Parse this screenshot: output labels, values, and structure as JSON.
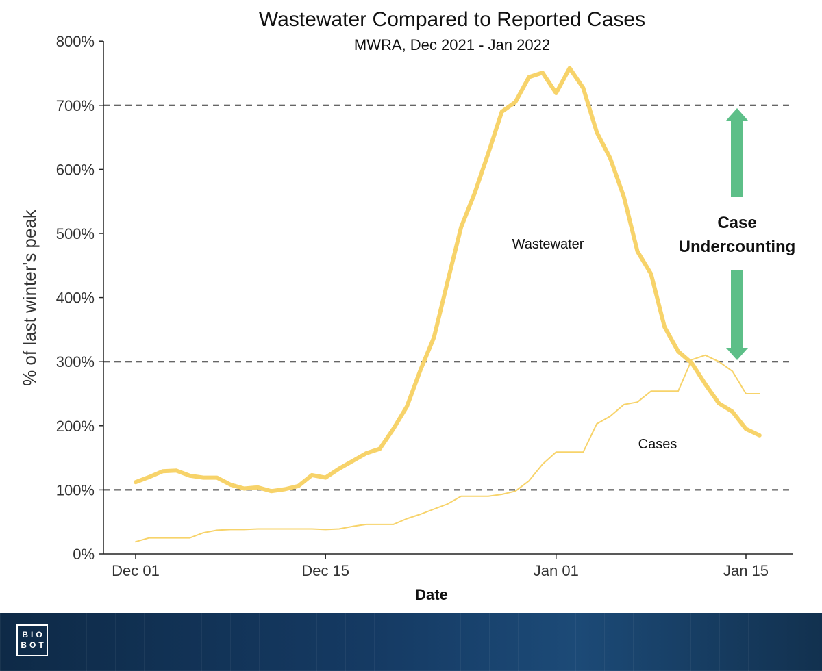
{
  "chart_data": {
    "type": "line",
    "title": "Wastewater Compared to Reported Cases",
    "subtitle": "MWRA, Dec 2021 - Jan 2022",
    "xlabel": "Date",
    "ylabel": "% of last winter's peak",
    "x_ticks": [
      {
        "label": "Dec 01",
        "day": 0
      },
      {
        "label": "Dec 15",
        "day": 14
      },
      {
        "label": "Jan 01",
        "day": 31
      },
      {
        "label": "Jan 15",
        "day": 45
      }
    ],
    "y_ticks": [
      "0%",
      "100%",
      "200%",
      "300%",
      "400%",
      "500%",
      "600%",
      "700%",
      "800%"
    ],
    "ylim": [
      0,
      800
    ],
    "reference_lines": [
      100,
      300,
      700
    ],
    "series": [
      {
        "name": "Wastewater",
        "color": "#f7d36a",
        "x": [
          0,
          1,
          2,
          3,
          4,
          5,
          6,
          7,
          8,
          9,
          10,
          11,
          12,
          13,
          14,
          15,
          16,
          17,
          18,
          19,
          20,
          21,
          22,
          23,
          24,
          25,
          26,
          27,
          28,
          29,
          30,
          31,
          32,
          33,
          34,
          35,
          36,
          37,
          38,
          39,
          40,
          41,
          42,
          43,
          44,
          45,
          46
        ],
        "values": [
          112,
          120,
          129,
          130,
          122,
          119,
          119,
          108,
          102,
          104,
          98,
          101,
          106,
          123,
          119,
          133,
          145,
          157,
          164,
          195,
          230,
          287,
          338,
          425,
          510,
          563,
          625,
          690,
          705,
          744,
          751,
          719,
          758,
          727,
          658,
          617,
          557,
          472,
          437,
          354,
          316,
          298,
          265,
          235,
          222,
          195,
          185
        ]
      },
      {
        "name": "Cases",
        "color": "#f7d36a",
        "x": [
          0,
          1,
          2,
          3,
          4,
          5,
          6,
          7,
          8,
          9,
          10,
          11,
          12,
          13,
          14,
          15,
          16,
          17,
          18,
          19,
          20,
          21,
          22,
          23,
          24,
          25,
          26,
          27,
          28,
          29,
          30,
          31,
          32,
          33,
          34,
          35,
          36,
          37,
          38,
          39,
          40,
          41,
          42,
          43,
          44,
          45,
          46
        ],
        "values": [
          19,
          25,
          25,
          25,
          25,
          33,
          37,
          38,
          38,
          39,
          39,
          39,
          39,
          39,
          38,
          39,
          43,
          46,
          46,
          46,
          55,
          62,
          70,
          78,
          90,
          90,
          90,
          93,
          98,
          114,
          140,
          159,
          159,
          159,
          203,
          215,
          233,
          237,
          254,
          254,
          254,
          303,
          310,
          300,
          285,
          250,
          250
        ]
      }
    ],
    "annotations": {
      "series_label_wastewater": "Wastewater",
      "series_label_cases": "Cases",
      "gap_line1": "Case",
      "gap_line2": "Undercounting",
      "arrow_color": "#5dbf88"
    }
  },
  "footer": {
    "logo_line1": "BIO",
    "logo_line2": "BOT"
  }
}
